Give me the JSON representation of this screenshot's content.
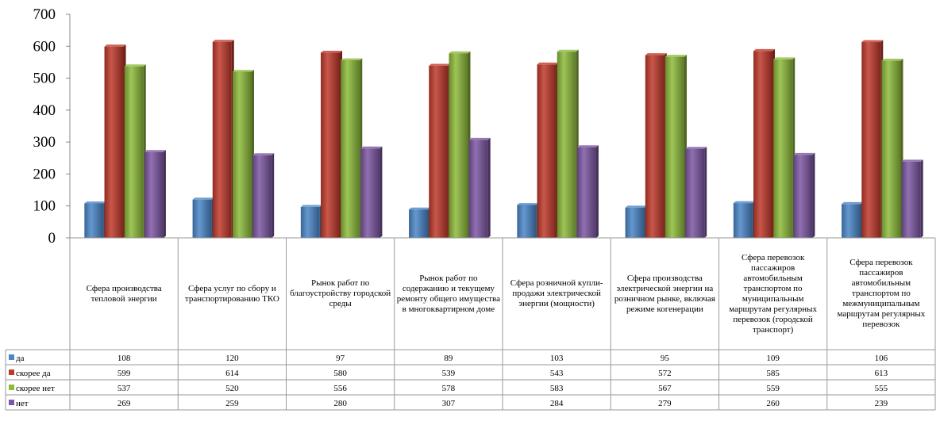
{
  "chart_data": {
    "type": "bar",
    "categories": [
      "Сфера производства тепловой энергии",
      "Сфера услуг по сбору и транспортированию ТКО",
      "Рынок работ по благоустройству городской среды",
      "Рынок работ по содержанию и текущему ремонту общего имущества в многоквартирном доме",
      "Сфера розничной купли-продажи электрической энергии (мощности)",
      "Сфера производства электрической энергии на розничном рынке, включая режиме когенерации",
      "Сфера перевозок пассажиров автомобильным транспортом по муниципальным маршрутам регулярных перевозок (городской транспорт)",
      "Сфера перевозок пассажиров автомобильным транспортом по межмуниципальным маршрутам регулярных перевозок"
    ],
    "series": [
      {
        "name": "да",
        "color": "#4a86c8",
        "values": [
          108,
          120,
          97,
          89,
          103,
          95,
          109,
          106
        ]
      },
      {
        "name": "скорее да",
        "color": "#c0392b",
        "values": [
          599,
          614,
          580,
          539,
          543,
          572,
          585,
          613
        ]
      },
      {
        "name": "скорее нет",
        "color": "#8dbb3a",
        "values": [
          537,
          520,
          556,
          578,
          583,
          567,
          559,
          555
        ]
      },
      {
        "name": "нет",
        "color": "#7d57a3",
        "values": [
          269,
          259,
          280,
          307,
          284,
          279,
          260,
          239
        ]
      }
    ],
    "yticks": [
      "0",
      "100",
      "200",
      "300",
      "400",
      "500",
      "600",
      "700"
    ],
    "ylim": [
      0,
      700
    ],
    "grid": false,
    "legend": "table-rows"
  }
}
